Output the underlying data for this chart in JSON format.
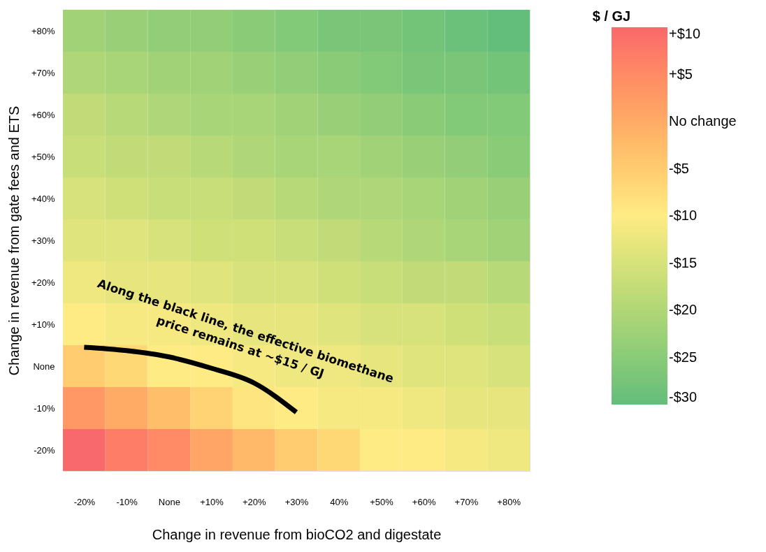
{
  "chart_data": {
    "type": "heatmap",
    "xlabel": "Change in revenue from bioCO2 and digestate",
    "ylabel": "Change in revenue from gate fees and ETS",
    "legend_title": "$ / GJ",
    "categories": [
      "-20%",
      "-10%",
      "None",
      "+10%",
      "+20%",
      "+30%",
      "40%",
      "+50%",
      "+60%",
      "+70%",
      "+80%"
    ],
    "y_categories": [
      "+80%",
      "+70%",
      "+60%",
      "+50%",
      "+40%",
      "+30%",
      "+20%",
      "+10%",
      "None",
      "-10%",
      "-20%"
    ],
    "cells": [
      [
        -22,
        -23,
        -24,
        -24,
        -25,
        -26,
        -27,
        -27,
        -28,
        -29,
        -30
      ],
      [
        -20,
        -21,
        -22,
        -22,
        -23,
        -24,
        -25,
        -26,
        -27,
        -27,
        -28
      ],
      [
        -18,
        -19,
        -20,
        -21,
        -21,
        -22,
        -23,
        -24,
        -25,
        -26,
        -26
      ],
      [
        -17,
        -18,
        -18,
        -19,
        -20,
        -21,
        -21,
        -22,
        -23,
        -24,
        -25
      ],
      [
        -15,
        -16,
        -17,
        -17,
        -18,
        -19,
        -20,
        -20,
        -21,
        -22,
        -23
      ],
      [
        -14,
        -14,
        -15,
        -16,
        -16,
        -17,
        -18,
        -19,
        -20,
        -21,
        -22
      ],
      [
        -12,
        -13,
        -13,
        -14,
        -15,
        -15,
        -16,
        -17,
        -18,
        -18,
        -19
      ],
      [
        -10,
        -11,
        -11,
        -12,
        -13,
        -13,
        -14,
        -15,
        -15,
        -16,
        -17
      ],
      [
        -5,
        -7,
        -10,
        -10,
        -11,
        -12,
        -12,
        -13,
        -14,
        -14,
        -15
      ],
      [
        3,
        0,
        -3,
        -6,
        -9,
        -10,
        -11,
        -11,
        -12,
        -13,
        -13
      ],
      [
        10,
        7,
        5,
        1,
        -2,
        -5,
        -7,
        -10,
        -10,
        -11,
        -12
      ]
    ],
    "colors": [
      "#63be7b",
      "#ffeb84",
      "#f8696b"
    ],
    "clim": [
      -30,
      10
    ],
    "cticks": [
      {
        "value": 10,
        "label": "+$10"
      },
      {
        "value": 5,
        "label": "+$5"
      },
      {
        "value": 0,
        "label": "No change"
      },
      {
        "value": -5,
        "label": "-$5"
      },
      {
        "value": -10,
        "label": "-$10"
      },
      {
        "value": -15,
        "label": "-$15"
      },
      {
        "value": -20,
        "label": "-$20"
      },
      {
        "value": -25,
        "label": "-$25"
      },
      {
        "value": -30,
        "label": "-$30"
      }
    ],
    "series": [
      {
        "type": "line",
        "color": "#000000",
        "values": [
          7.55,
          7.63,
          7.78,
          8.05,
          8.4,
          9.1,
          null,
          null,
          null,
          null,
          null
        ]
      }
    ],
    "annotations": [
      "Along the black line, the effective biomethane\nprice remains at ~$15 / GJ"
    ]
  }
}
